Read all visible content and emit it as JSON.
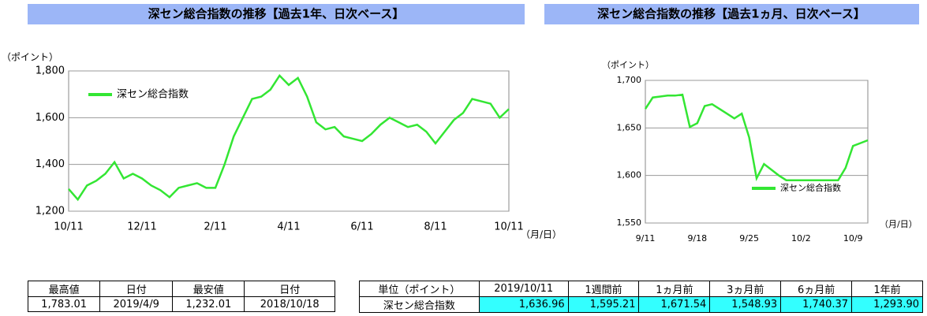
{
  "chart_data": [
    {
      "type": "line",
      "title": "深セン総合指数の推移【過去1年、日次ベース】",
      "y_label": "（ポイント）",
      "x_label": "（月/日）",
      "categories": [
        "10/11",
        null,
        null,
        null,
        null,
        null,
        null,
        null,
        "12/11",
        null,
        null,
        null,
        null,
        null,
        null,
        null,
        "2/11",
        null,
        null,
        null,
        null,
        null,
        null,
        null,
        "4/11",
        null,
        null,
        null,
        null,
        null,
        null,
        null,
        "6/11",
        null,
        null,
        null,
        null,
        null,
        null,
        null,
        "8/11",
        null,
        null,
        null,
        null,
        null,
        null,
        null,
        "10/11"
      ],
      "series": [
        {
          "name": "深セン総合指数",
          "color": "#33e633",
          "values": [
            1295,
            1250,
            1310,
            1330,
            1360,
            1410,
            1340,
            1360,
            1340,
            1310,
            1290,
            1260,
            1300,
            1310,
            1320,
            1300,
            1300,
            1400,
            1520,
            1600,
            1680,
            1690,
            1720,
            1780,
            1740,
            1770,
            1690,
            1580,
            1550,
            1560,
            1520,
            1510,
            1500,
            1530,
            1570,
            1600,
            1580,
            1560,
            1570,
            1540,
            1490,
            1540,
            1590,
            1620,
            1680,
            1670,
            1660,
            1600,
            1637
          ]
        }
      ],
      "ylim": [
        1200,
        1800
      ],
      "yticks": [
        {
          "value": 1200,
          "label": "1,200"
        },
        {
          "value": 1400,
          "label": "1,400"
        },
        {
          "value": 1600,
          "label": "1,600"
        },
        {
          "value": 1800,
          "label": "1,800"
        }
      ],
      "grid": true
    },
    {
      "type": "line",
      "title": "深セン総合指数の推移【過去1ヵ月、日次ベース】",
      "y_label": "（ポイント）",
      "x_label": "（月/日）",
      "categories": [
        "9/11",
        null,
        null,
        null,
        null,
        null,
        null,
        "9/18",
        null,
        null,
        null,
        null,
        null,
        null,
        "9/25",
        null,
        null,
        null,
        null,
        null,
        null,
        "10/2",
        null,
        null,
        null,
        null,
        null,
        null,
        "10/9",
        null,
        null
      ],
      "series": [
        {
          "name": "深セン総合指数",
          "color": "#33e633",
          "values": [
            1670,
            1682,
            1683,
            1684,
            1684,
            1685,
            1651,
            1655,
            1673,
            1675,
            1670,
            1665,
            1660,
            1665,
            1640,
            1597,
            1612,
            1606,
            1600,
            1595,
            1595,
            1595,
            1595,
            1595,
            1595,
            1595,
            1595,
            1608,
            1631,
            1634,
            1637
          ]
        }
      ],
      "ylim": [
        1550,
        1700
      ],
      "yticks": [
        {
          "value": 1550,
          "label": "1,550"
        },
        {
          "value": 1600,
          "label": "1,600"
        },
        {
          "value": 1650,
          "label": "1,650"
        },
        {
          "value": 1700,
          "label": "1,700"
        }
      ],
      "grid": true
    }
  ],
  "tables": [
    {
      "header": [
        "最高値",
        "日付",
        "最安値",
        "日付"
      ],
      "rows": [
        [
          "1,783.01",
          "2019/4/9",
          "1,232.01",
          "2018/10/18"
        ]
      ]
    },
    {
      "header": [
        "単位（ポイント）",
        "2019/10/11",
        "1週間前",
        "1ヵ月前",
        "3ヵ月前",
        "6ヵ月前",
        "1年前"
      ],
      "rows": [
        [
          "深セン総合指数",
          "1,636.96",
          "1,595.21",
          "1,671.54",
          "1,548.93",
          "1,740.37",
          "1,293.90"
        ]
      ]
    }
  ]
}
